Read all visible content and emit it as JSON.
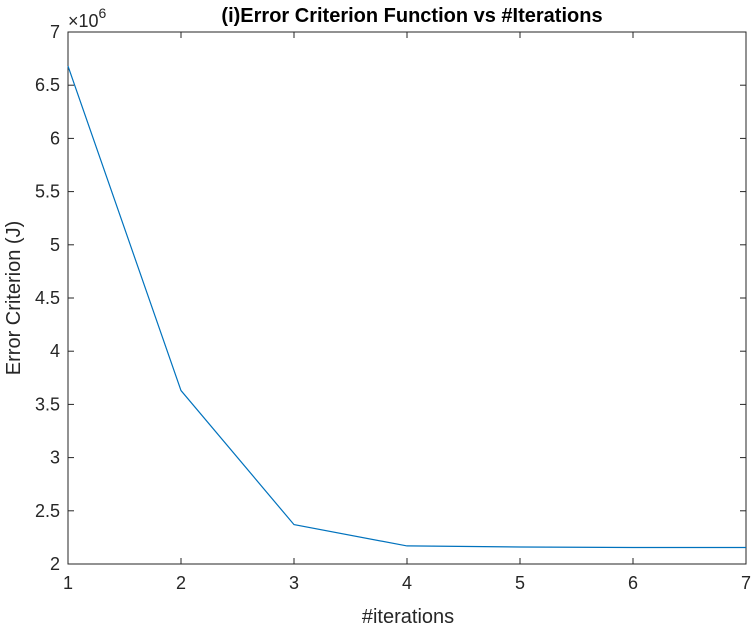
{
  "chart_data": {
    "type": "line",
    "title": "(i)Error Criterion Function vs #Iterations",
    "xlabel": "#iterations",
    "ylabel": "Error Criterion (J)",
    "y_exponent_prefix": "×10",
    "y_exponent_power": "6",
    "y_multiplier": 1000000,
    "xlim": [
      1,
      7
    ],
    "ylim": [
      2,
      7
    ],
    "x_ticks": [
      "1",
      "2",
      "3",
      "4",
      "5",
      "6",
      "7"
    ],
    "y_ticks": [
      "2",
      "2.5",
      "3",
      "3.5",
      "4",
      "4.5",
      "5",
      "5.5",
      "6",
      "6.5",
      "7"
    ],
    "series": [
      {
        "color": "#0072BD",
        "x": [
          1,
          2,
          3,
          4,
          5,
          6,
          7
        ],
        "y": [
          6.68,
          3.63,
          2.37,
          2.17,
          2.16,
          2.155,
          2.155
        ]
      }
    ],
    "grid": false,
    "box": true
  }
}
